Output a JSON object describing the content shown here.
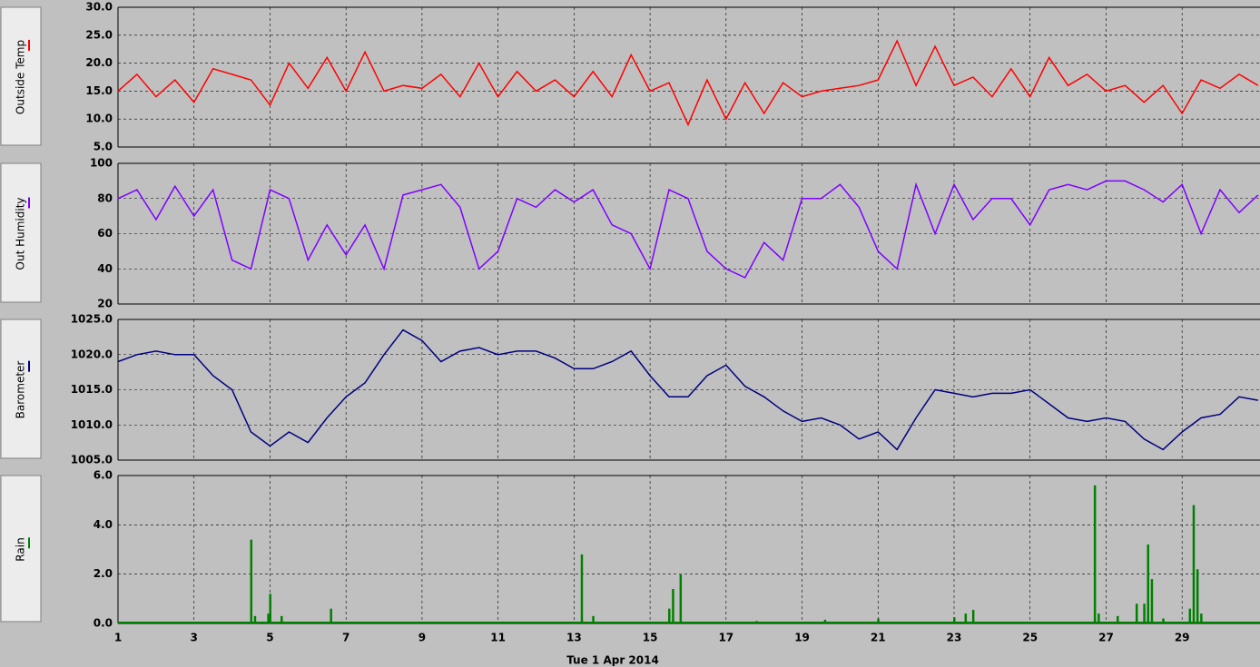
{
  "chart_data": [
    {
      "type": "line",
      "ylabel": "Outside Temp",
      "color": "#ff0000",
      "x": [
        1,
        1.5,
        2,
        2.5,
        3,
        3.5,
        4,
        4.5,
        5,
        5.5,
        6,
        6.5,
        7,
        7.5,
        8,
        8.5,
        9,
        9.5,
        10,
        10.5,
        11,
        11.5,
        12,
        12.5,
        13,
        13.5,
        14,
        14.5,
        15,
        15.5,
        16,
        16.5,
        17,
        17.5,
        18,
        18.5,
        19,
        19.5,
        20,
        20.5,
        21,
        21.5,
        22,
        22.5,
        23,
        23.5,
        24,
        24.5,
        25,
        25.5,
        26,
        26.5,
        27,
        27.5,
        28,
        28.5,
        29,
        29.5,
        30,
        30.5,
        31
      ],
      "values": [
        15,
        18,
        14,
        17,
        13,
        19,
        18,
        17,
        12.5,
        20,
        15.5,
        21,
        15,
        22,
        15,
        16,
        15.5,
        18,
        14,
        20,
        14,
        18.5,
        15,
        17,
        14,
        18.5,
        14,
        21.5,
        15,
        16.5,
        9,
        17,
        10,
        16.5,
        11,
        16.5,
        14,
        15,
        15.5,
        16,
        17,
        24,
        16,
        23,
        16,
        17.5,
        14,
        19,
        14,
        21,
        16,
        18,
        15,
        16,
        13,
        16,
        11,
        17,
        15.5,
        18,
        16
      ],
      "xlim": [
        1,
        31.05
      ],
      "ylim": [
        5,
        30
      ],
      "yticks": [
        {
          "value": 5,
          "label": "5.0"
        },
        {
          "value": 10,
          "label": "10.0"
        },
        {
          "value": 15,
          "label": "15.0"
        },
        {
          "value": 20,
          "label": "20.0"
        },
        {
          "value": 25,
          "label": "25.0"
        },
        {
          "value": 30,
          "label": "30.0"
        }
      ]
    },
    {
      "type": "line",
      "ylabel": "Out Humidity",
      "color": "#8000ff",
      "x": [
        1,
        1.5,
        2,
        2.5,
        3,
        3.5,
        4,
        4.5,
        5,
        5.5,
        6,
        6.5,
        7,
        7.5,
        8,
        8.5,
        9,
        9.5,
        10,
        10.5,
        11,
        11.5,
        12,
        12.5,
        13,
        13.5,
        14,
        14.5,
        15,
        15.5,
        16,
        16.5,
        17,
        17.5,
        18,
        18.5,
        19,
        19.5,
        20,
        20.5,
        21,
        21.5,
        22,
        22.5,
        23,
        23.5,
        24,
        24.5,
        25,
        25.5,
        26,
        26.5,
        27,
        27.5,
        28,
        28.5,
        29,
        29.5,
        30,
        30.5,
        31
      ],
      "values": [
        80,
        85,
        68,
        87,
        70,
        85,
        45,
        40,
        85,
        80,
        45,
        65,
        48,
        65,
        40,
        82,
        85,
        88,
        75,
        40,
        50,
        80,
        75,
        85,
        78,
        85,
        65,
        60,
        40,
        85,
        80,
        50,
        40,
        35,
        55,
        45,
        80,
        80,
        88,
        75,
        50,
        40,
        88,
        60,
        88,
        68,
        80,
        80,
        65,
        85,
        88,
        85,
        90,
        90,
        85,
        78,
        88,
        60,
        85,
        72,
        82
      ],
      "xlim": [
        1,
        31.05
      ],
      "ylim": [
        20,
        100
      ],
      "yticks": [
        20,
        40,
        60,
        80,
        100
      ]
    },
    {
      "type": "line",
      "ylabel": "Barometer",
      "color": "#000080",
      "x": [
        1,
        1.5,
        2,
        2.5,
        3,
        3.5,
        4,
        4.5,
        5,
        5.5,
        6,
        6.5,
        7,
        7.5,
        8,
        8.5,
        9,
        9.5,
        10,
        10.5,
        11,
        11.5,
        12,
        12.5,
        13,
        13.5,
        14,
        14.5,
        15,
        15.5,
        16,
        16.5,
        17,
        17.5,
        18,
        18.5,
        19,
        19.5,
        20,
        20.5,
        21,
        21.5,
        22,
        22.5,
        23,
        23.5,
        24,
        24.5,
        25,
        25.5,
        26,
        26.5,
        27,
        27.5,
        28,
        28.5,
        29,
        29.5,
        30,
        30.5,
        31
      ],
      "values": [
        1019,
        1020,
        1020.5,
        1020,
        1020,
        1017,
        1015,
        1009,
        1007,
        1009,
        1007.5,
        1011,
        1014,
        1016,
        1020,
        1023.5,
        1022,
        1019,
        1020.5,
        1021,
        1020,
        1020.5,
        1020.5,
        1019.5,
        1018,
        1018,
        1019,
        1020.5,
        1017,
        1014,
        1014,
        1017,
        1018.5,
        1015.5,
        1014,
        1012,
        1010.5,
        1011,
        1010,
        1008,
        1009,
        1006.5,
        1011,
        1015,
        1014.5,
        1014,
        1014.5,
        1014.5,
        1015,
        1013,
        1011,
        1010.5,
        1011,
        1010.5,
        1008,
        1006.5,
        1009,
        1011,
        1011.5,
        1014,
        1013.5
      ],
      "xlim": [
        1,
        31.05
      ],
      "ylim": [
        1005,
        1025
      ],
      "yticks": [
        {
          "value": 1005,
          "label": "1005.0"
        },
        {
          "value": 1010,
          "label": "1010.0"
        },
        {
          "value": 1015,
          "label": "1015.0"
        },
        {
          "value": 1020,
          "label": "1020.0"
        },
        {
          "value": 1025,
          "label": "1025.0"
        }
      ]
    },
    {
      "type": "bar",
      "ylabel": "Rain",
      "color": "#008000",
      "x": [
        4.5,
        4.6,
        4.95,
        5.0,
        5.3,
        6.6,
        13.2,
        13.5,
        15.5,
        15.6,
        15.8,
        17.8,
        19.6,
        21.0,
        23.0,
        23.3,
        23.5,
        26.7,
        26.8,
        27.3,
        27.8,
        28.0,
        28.1,
        28.2,
        28.5,
        29.2,
        29.3,
        29.4,
        29.5
      ],
      "values": [
        3.4,
        0.3,
        0.4,
        1.2,
        0.3,
        0.6,
        2.8,
        0.3,
        0.6,
        1.4,
        2.0,
        0.1,
        0.15,
        0.2,
        0.25,
        0.4,
        0.55,
        5.6,
        0.4,
        0.3,
        0.8,
        0.8,
        3.2,
        1.8,
        0.2,
        0.6,
        4.8,
        2.2,
        0.4
      ],
      "xlim": [
        1,
        31.05
      ],
      "ylim": [
        0,
        6
      ],
      "yticks": [
        {
          "value": 0,
          "label": "0.0"
        },
        {
          "value": 2,
          "label": "2.0"
        },
        {
          "value": 4,
          "label": "4.0"
        },
        {
          "value": 6,
          "label": "6.0"
        }
      ],
      "xticks": [
        1,
        3,
        5,
        7,
        9,
        11,
        13,
        15,
        17,
        19,
        21,
        23,
        25,
        27,
        29
      ],
      "xlabel": "Tue 1 Apr 2014"
    }
  ]
}
